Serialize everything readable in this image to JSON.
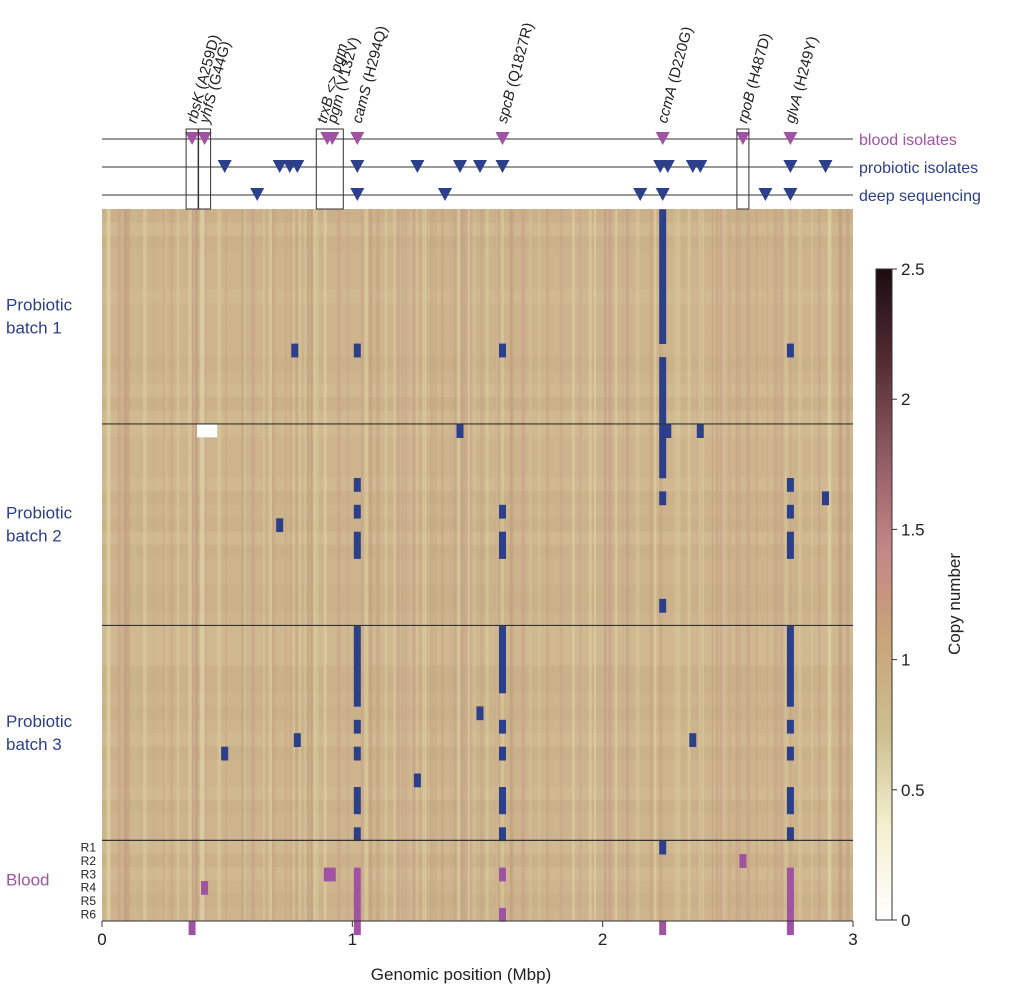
{
  "chart_data": {
    "type": "heatmap",
    "xlabel": "Genomic position (Mbp)",
    "xlim": [
      0,
      3
    ],
    "xticks": [
      "0",
      "1",
      "2",
      "3"
    ],
    "colorbar": {
      "title": "Copy number",
      "range": [
        0,
        2.5
      ],
      "ticks": [
        "0",
        "0.5",
        "1",
        "1.5",
        "2",
        "2.5"
      ],
      "stops": [
        "#ffffff",
        "#f4f0cf",
        "#cdbf8f",
        "#c9a57a",
        "#c38687",
        "#8f5b64",
        "#552c34",
        "#1c0d10"
      ]
    },
    "colors": {
      "blue": "#2b3f8a",
      "purple": "#a052a3",
      "background": "#cdb48c",
      "line": "#333333"
    },
    "genes": [
      {
        "name": "rbsK",
        "mut": " (A259D)",
        "x": 0.36
      },
      {
        "name": "yhfS",
        "mut": " (G44G)",
        "x": 0.41
      },
      {
        "name": "trxB <> pgm",
        "mut": "",
        "x": 0.88
      },
      {
        "name": "pgm",
        "mut": " (V132V)",
        "x": 0.92
      },
      {
        "name": "camS",
        "mut": " (H294Q)",
        "x": 1.02
      },
      {
        "name": "spcB",
        "mut": " (Q1827R)",
        "x": 1.6
      },
      {
        "name": "ccmA",
        "mut": " (D220G)",
        "x": 2.24
      },
      {
        "name": "rpoB",
        "mut": " (H487D)",
        "x": 2.56
      },
      {
        "name": "glvA",
        "mut": " (H249Y)",
        "x": 2.75
      }
    ],
    "tracks": [
      {
        "label": "blood isolates",
        "color": "#a052a3",
        "positions": [
          0.36,
          0.41,
          0.9,
          0.92,
          1.02,
          1.6,
          2.24,
          2.56,
          2.75
        ]
      },
      {
        "label": "probiotic isolates",
        "color": "#2b3f8a",
        "positions": [
          0.49,
          0.71,
          0.75,
          0.78,
          1.02,
          1.26,
          1.43,
          1.51,
          1.6,
          2.23,
          2.26,
          2.36,
          2.39,
          2.75,
          2.89
        ]
      },
      {
        "label": "deep sequencing",
        "color": "#2b3f8a",
        "positions": [
          0.62,
          1.02,
          1.37,
          2.15,
          2.24,
          2.65,
          2.75
        ]
      }
    ],
    "boxes": [
      [
        0.36
      ],
      [
        0.41
      ],
      [
        0.88,
        0.94
      ],
      [
        2.56
      ]
    ],
    "groups": [
      {
        "label": "Probiotic\nbatch 1",
        "color": "#2b3f8a",
        "rows": 16
      },
      {
        "label": "Probiotic\nbatch 2",
        "color": "#2b3f8a",
        "rows": 15
      },
      {
        "label": "Probiotic\nbatch 3",
        "color": "#2b3f8a",
        "rows": 16
      },
      {
        "label": "Blood",
        "color": "#a052a3",
        "rows": 6,
        "row_labels": [
          "R1",
          "R2",
          "R3",
          "R4",
          "R5",
          "R6"
        ]
      }
    ],
    "missing_blocks": [
      {
        "row": 16,
        "x0": 0.38,
        "x1": 0.46
      }
    ],
    "features": [
      {
        "x": 2.24,
        "rows": [
          0,
          1,
          2,
          3,
          4,
          5,
          6,
          7,
          8,
          9
        ],
        "color": "blue"
      },
      {
        "x": 2.24,
        "rows": [
          11,
          12,
          13,
          14,
          15,
          16,
          17,
          18,
          19
        ],
        "color": "blue"
      },
      {
        "x": 0.77,
        "rows": [
          10
        ],
        "color": "blue"
      },
      {
        "x": 1.02,
        "rows": [
          10
        ],
        "color": "blue"
      },
      {
        "x": 1.6,
        "rows": [
          10
        ],
        "color": "blue"
      },
      {
        "x": 2.75,
        "rows": [
          10
        ],
        "color": "blue"
      },
      {
        "x": 1.43,
        "rows": [
          16
        ],
        "color": "blue"
      },
      {
        "x": 2.26,
        "rows": [
          16
        ],
        "color": "blue"
      },
      {
        "x": 2.39,
        "rows": [
          16
        ],
        "color": "blue"
      },
      {
        "x": 1.02,
        "rows": [
          20
        ],
        "color": "blue"
      },
      {
        "x": 2.24,
        "rows": [
          21
        ],
        "color": "blue"
      },
      {
        "x": 2.75,
        "rows": [
          20
        ],
        "color": "blue"
      },
      {
        "x": 2.89,
        "rows": [
          21
        ],
        "color": "blue"
      },
      {
        "x": 1.02,
        "rows": [
          22
        ],
        "color": "blue"
      },
      {
        "x": 1.6,
        "rows": [
          22
        ],
        "color": "blue"
      },
      {
        "x": 2.75,
        "rows": [
          22
        ],
        "color": "blue"
      },
      {
        "x": 0.71,
        "rows": [
          23
        ],
        "color": "blue"
      },
      {
        "x": 1.02,
        "rows": [
          24,
          25
        ],
        "color": "blue"
      },
      {
        "x": 1.6,
        "rows": [
          24,
          25
        ],
        "color": "blue"
      },
      {
        "x": 2.75,
        "rows": [
          24,
          25
        ],
        "color": "blue"
      },
      {
        "x": 2.24,
        "rows": [
          29
        ],
        "color": "blue"
      },
      {
        "x": 1.02,
        "rows": [
          31,
          32,
          33,
          34,
          35,
          36
        ],
        "color": "blue"
      },
      {
        "x": 1.6,
        "rows": [
          31,
          32,
          33,
          34,
          35
        ],
        "color": "blue"
      },
      {
        "x": 2.75,
        "rows": [
          31,
          32,
          33,
          34,
          35,
          36
        ],
        "color": "blue"
      },
      {
        "x": 1.51,
        "rows": [
          37
        ],
        "color": "blue"
      },
      {
        "x": 1.02,
        "rows": [
          38
        ],
        "color": "blue"
      },
      {
        "x": 1.6,
        "rows": [
          38
        ],
        "color": "blue"
      },
      {
        "x": 2.75,
        "rows": [
          38
        ],
        "color": "blue"
      },
      {
        "x": 0.78,
        "rows": [
          39
        ],
        "color": "blue"
      },
      {
        "x": 2.36,
        "rows": [
          39
        ],
        "color": "blue"
      },
      {
        "x": 0.49,
        "rows": [
          40
        ],
        "color": "blue"
      },
      {
        "x": 1.02,
        "rows": [
          40
        ],
        "color": "blue"
      },
      {
        "x": 1.6,
        "rows": [
          40
        ],
        "color": "blue"
      },
      {
        "x": 2.75,
        "rows": [
          40
        ],
        "color": "blue"
      },
      {
        "x": 1.26,
        "rows": [
          42
        ],
        "color": "blue"
      },
      {
        "x": 1.02,
        "rows": [
          43,
          44
        ],
        "color": "blue"
      },
      {
        "x": 1.6,
        "rows": [
          43,
          44
        ],
        "color": "blue"
      },
      {
        "x": 2.75,
        "rows": [
          43,
          44
        ],
        "color": "blue"
      },
      {
        "x": 1.02,
        "rows": [
          46
        ],
        "color": "blue"
      },
      {
        "x": 1.6,
        "rows": [
          46
        ],
        "color": "blue"
      },
      {
        "x": 2.75,
        "rows": [
          46
        ],
        "color": "blue"
      },
      {
        "x": 2.24,
        "rows": [
          47
        ],
        "color": "blue"
      },
      {
        "x": 2.56,
        "rows": [
          48
        ],
        "color": "purple"
      },
      {
        "x": 0.9,
        "rows": [
          49
        ],
        "color": "purple"
      },
      {
        "x": 0.92,
        "rows": [
          49
        ],
        "color": "purple"
      },
      {
        "x": 1.02,
        "rows": [
          49,
          50,
          51,
          52,
          53
        ],
        "color": "purple"
      },
      {
        "x": 1.6,
        "rows": [
          49
        ],
        "color": "purple"
      },
      {
        "x": 2.75,
        "rows": [
          49,
          50,
          51,
          52,
          53
        ],
        "color": "purple"
      },
      {
        "x": 0.41,
        "rows": [
          50
        ],
        "color": "purple"
      },
      {
        "x": 1.6,
        "rows": [
          52
        ],
        "color": "purple"
      },
      {
        "x": 0.36,
        "rows": [
          53
        ],
        "color": "purple"
      },
      {
        "x": 2.24,
        "rows": [
          53
        ],
        "color": "purple"
      }
    ]
  }
}
